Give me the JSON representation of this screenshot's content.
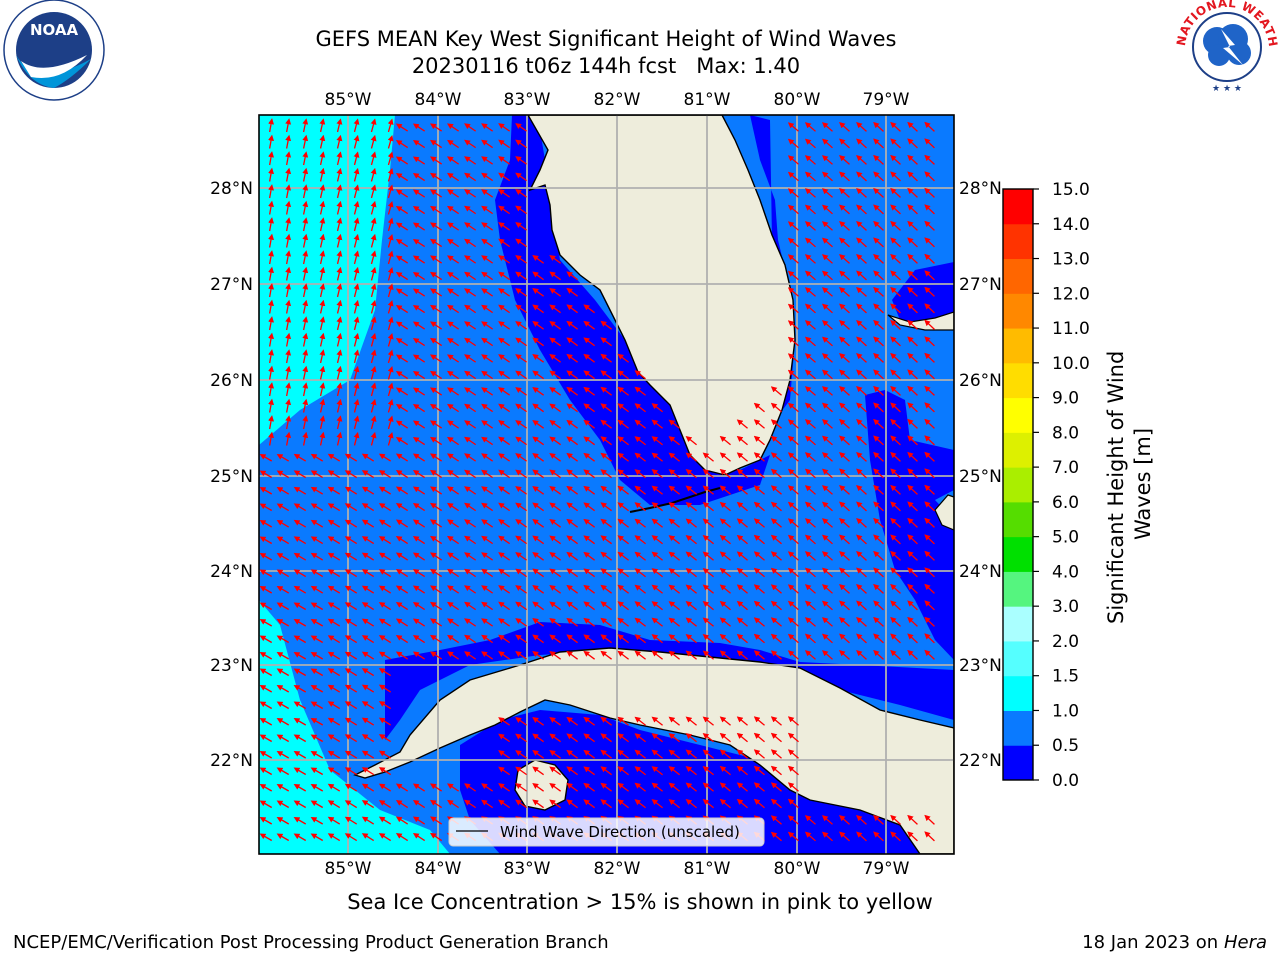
{
  "header": {
    "title_line1": "GEFS MEAN Key West Significant Height of Wind Waves",
    "title_line2": "20230116 t06z 144h fcst   Max: 1.40"
  },
  "logos": {
    "noaa_text": "NOAA",
    "nws_text": "NATIONAL WEATHER SERVICE"
  },
  "map": {
    "lon_labels": [
      "85°W",
      "84°W",
      "83°W",
      "82°W",
      "81°W",
      "80°W",
      "79°W"
    ],
    "lat_labels": [
      "28°N",
      "27°N",
      "26°N",
      "25°N",
      "24°N",
      "23°N",
      "22°N"
    ],
    "legend": "Wind Wave Direction (unscaled)",
    "colors": {
      "land": "#eeeddc",
      "band_0_0_5": "#0000ff",
      "band_0_5_1": "#0a7aff",
      "band_1_1_5": "#00ffff",
      "arrows": "#ff0000",
      "grid": "#b0b0b0"
    }
  },
  "colorbar": {
    "label_line1": "Significant Height of Wind",
    "label_line2": "Waves [m]",
    "ticks": [
      "0.0",
      "0.5",
      "1.0",
      "1.5",
      "2.0",
      "3.0",
      "4.0",
      "5.0",
      "6.0",
      "7.0",
      "8.0",
      "9.0",
      "10.0",
      "11.0",
      "12.0",
      "13.0",
      "14.0",
      "15.0"
    ],
    "colors": [
      "#0000ff",
      "#0a7aff",
      "#00ffff",
      "#55ffff",
      "#aaffff",
      "#55f57f",
      "#00e000",
      "#55dd00",
      "#aaee00",
      "#ddf000",
      "#ffff00",
      "#ffdd00",
      "#ffbb00",
      "#ff8800",
      "#ff6600",
      "#ff3300",
      "#ff0000"
    ]
  },
  "caption": "Sea Ice Concentration > 15% is shown in pink to yellow",
  "footer": {
    "left": "NCEP/EMC/Verification Post Processing Product Generation Branch",
    "right_prefix": "18 Jan 2023 on ",
    "right_host": "Hera"
  }
}
